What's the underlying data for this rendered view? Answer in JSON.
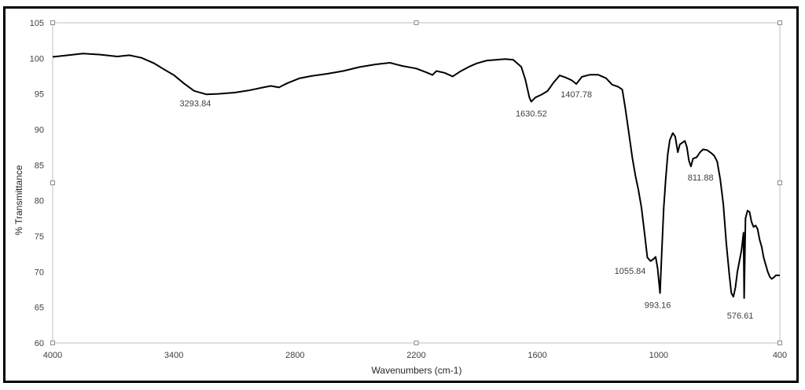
{
  "chart_data": {
    "type": "line",
    "title": "",
    "xlabel": "Wavenumbers (cm-1)",
    "ylabel": "% Transmittance",
    "xlim": [
      4000,
      400
    ],
    "ylim": [
      60,
      105
    ],
    "x_reversed": true,
    "x_ticks": [
      4000,
      3400,
      2800,
      2200,
      1600,
      1000,
      400
    ],
    "y_ticks": [
      60,
      65,
      70,
      75,
      80,
      85,
      90,
      95,
      100,
      105
    ],
    "grid": false,
    "legend": "none",
    "line_color": "#000000",
    "series": [
      {
        "points": [
          [
            4000,
            100.2
          ],
          [
            3920,
            100.3
          ],
          [
            3850,
            100.5
          ],
          [
            3760,
            100.5
          ],
          [
            3680,
            100.4
          ],
          [
            3620,
            100.6
          ],
          [
            3560,
            100.1
          ],
          [
            3500,
            99.2
          ],
          [
            3450,
            98.3
          ],
          [
            3400,
            97.6
          ],
          [
            3350,
            96.6
          ],
          [
            3300,
            95.6
          ],
          [
            3240,
            95.0
          ],
          [
            3180,
            94.9
          ],
          [
            3100,
            95.0
          ],
          [
            3030,
            95.4
          ],
          [
            2960,
            96.0
          ],
          [
            2920,
            96.3
          ],
          [
            2880,
            96.0
          ],
          [
            2840,
            96.4
          ],
          [
            2780,
            97.0
          ],
          [
            2720,
            97.4
          ],
          [
            2640,
            97.9
          ],
          [
            2560,
            98.4
          ],
          [
            2480,
            98.9
          ],
          [
            2400,
            99.1
          ],
          [
            2330,
            99.2
          ],
          [
            2270,
            98.8
          ],
          [
            2200,
            98.6
          ],
          [
            2150,
            98.2
          ],
          [
            2120,
            97.8
          ],
          [
            2100,
            98.2
          ],
          [
            2060,
            97.8
          ],
          [
            2020,
            97.3
          ],
          [
            1980,
            98.2
          ],
          [
            1940,
            98.8
          ],
          [
            1900,
            99.3
          ],
          [
            1850,
            99.7
          ],
          [
            1800,
            99.8
          ],
          [
            1760,
            99.9
          ],
          [
            1720,
            99.8
          ],
          [
            1680,
            98.8
          ],
          [
            1660,
            97.0
          ],
          [
            1640,
            94.5
          ],
          [
            1630.52,
            93.9
          ],
          [
            1610,
            94.5
          ],
          [
            1580,
            94.9
          ],
          [
            1550,
            95.4
          ],
          [
            1520,
            96.6
          ],
          [
            1490,
            97.6
          ],
          [
            1460,
            97.3
          ],
          [
            1430,
            96.9
          ],
          [
            1407.78,
            96.4
          ],
          [
            1380,
            97.4
          ],
          [
            1340,
            97.7
          ],
          [
            1300,
            97.7
          ],
          [
            1260,
            97.2
          ],
          [
            1230,
            96.3
          ],
          [
            1200,
            96.0
          ],
          [
            1180,
            95.6
          ],
          [
            1165,
            93.0
          ],
          [
            1150,
            90.0
          ],
          [
            1130,
            86.0
          ],
          [
            1115,
            83.5
          ],
          [
            1100,
            81.5
          ],
          [
            1085,
            79.0
          ],
          [
            1070,
            75.5
          ],
          [
            1055.84,
            72.0
          ],
          [
            1040,
            71.5
          ],
          [
            1025,
            71.8
          ],
          [
            1015,
            72.1
          ],
          [
            1005,
            70.5
          ],
          [
            993.16,
            67.0
          ],
          [
            985,
            72.5
          ],
          [
            975,
            79.0
          ],
          [
            965,
            83.0
          ],
          [
            955,
            86.5
          ],
          [
            945,
            88.5
          ],
          [
            930,
            89.5
          ],
          [
            918,
            89.0
          ],
          [
            905,
            86.8
          ],
          [
            895,
            87.9
          ],
          [
            880,
            88.2
          ],
          [
            870,
            88.4
          ],
          [
            860,
            87.5
          ],
          [
            850,
            85.6
          ],
          [
            840,
            84.8
          ],
          [
            830,
            85.9
          ],
          [
            811.88,
            86.1
          ],
          [
            795,
            86.8
          ],
          [
            780,
            87.2
          ],
          [
            760,
            87.1
          ],
          [
            740,
            86.7
          ],
          [
            725,
            86.3
          ],
          [
            710,
            85.5
          ],
          [
            695,
            83.0
          ],
          [
            680,
            79.5
          ],
          [
            665,
            74.0
          ],
          [
            650,
            69.5
          ],
          [
            640,
            67.0
          ],
          [
            630,
            66.5
          ],
          [
            576.61,
            66.3
          ],
          [
            620,
            67.8
          ],
          [
            610,
            70.0
          ],
          [
            600,
            71.5
          ],
          [
            590,
            73.0
          ],
          [
            580,
            75.5
          ],
          [
            570,
            77.5
          ],
          [
            560,
            78.6
          ],
          [
            550,
            78.4
          ],
          [
            540,
            77.0
          ],
          [
            530,
            76.3
          ],
          [
            520,
            76.5
          ],
          [
            510,
            76.0
          ],
          [
            500,
            74.5
          ],
          [
            490,
            73.5
          ],
          [
            480,
            72.0
          ],
          [
            470,
            71.0
          ],
          [
            460,
            70.0
          ],
          [
            450,
            69.3
          ],
          [
            440,
            69.0
          ],
          [
            430,
            69.2
          ],
          [
            420,
            69.5
          ],
          [
            410,
            69.5
          ],
          [
            400,
            69.5
          ]
        ]
      }
    ],
    "annotations": [
      {
        "text": "3293.84",
        "x": 3293.84,
        "y": 95.0
      },
      {
        "text": "1630.52",
        "x": 1630.52,
        "y": 93.9
      },
      {
        "text": "1407.78",
        "x": 1407.78,
        "y": 96.4
      },
      {
        "text": "1055.84",
        "x": 1055.84,
        "y": 71.6
      },
      {
        "text": "993.16",
        "x": 993.16,
        "y": 67.0
      },
      {
        "text": "811.88",
        "x": 811.88,
        "y": 84.8
      },
      {
        "text": "576.61",
        "x": 576.61,
        "y": 66.3
      }
    ]
  }
}
